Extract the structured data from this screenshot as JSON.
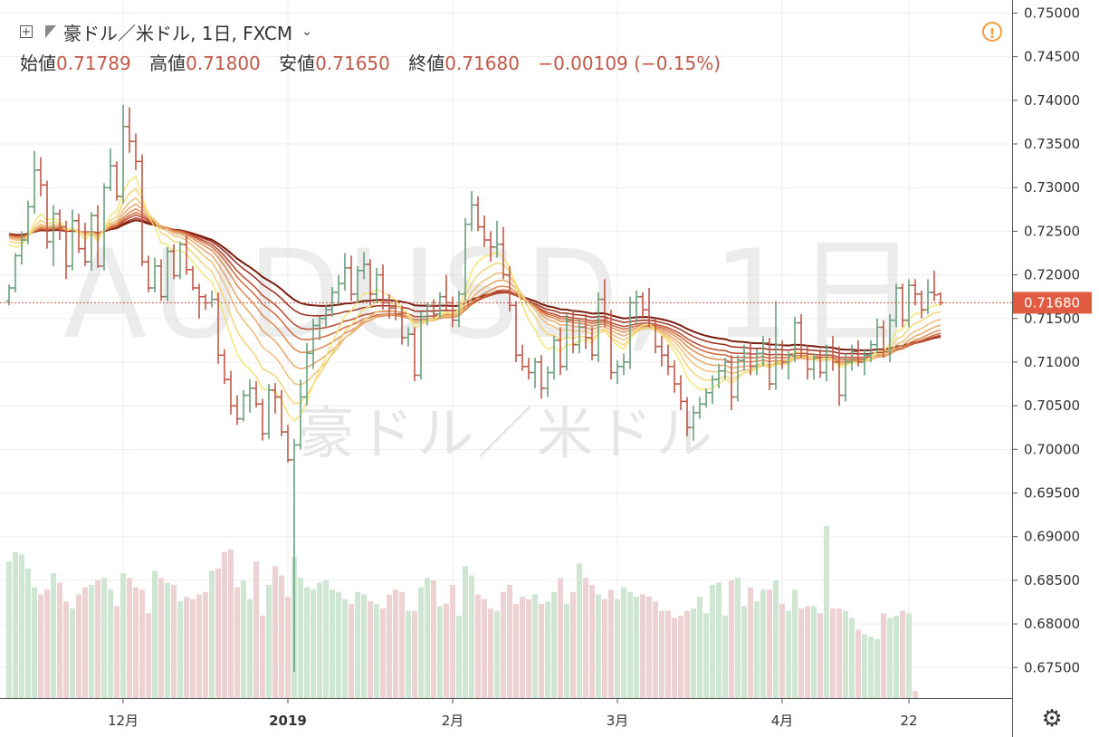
{
  "header": {
    "symbol": "豪ドル／米ドル, 1日, FXCM",
    "ohlc": [
      {
        "label": "始値",
        "value": "0.71789"
      },
      {
        "label": "高値",
        "value": "0.71800"
      },
      {
        "label": "安値",
        "value": "0.71650"
      },
      {
        "label": "終値",
        "value": "0.71680"
      }
    ],
    "change": "−0.00109 (−0.15%)"
  },
  "watermark": {
    "line1": "AUDUSD, 1日",
    "line2": "豪ドル／米ドル"
  },
  "colors": {
    "up": "#6a9f7f",
    "down": "#c0584a",
    "vol_up": "#cfe6d3",
    "vol_down": "#ecd2d2",
    "ribbon": [
      "#7a1c0f",
      "#9b2e1c",
      "#b94a2e",
      "#cf6a3c",
      "#de8a52",
      "#e7a76a",
      "#eec07c",
      "#f2d679",
      "#f6e57a"
    ],
    "accent": "#e05b3f"
  },
  "chart_data": {
    "type": "ohlc",
    "title": "豪ドル／米ドル, 1日, FXCM",
    "xlabel": "",
    "ylabel": "",
    "ylim": [
      0.6715,
      0.7515
    ],
    "y_ticks": [
      "0.75000",
      "0.74500",
      "0.74000",
      "0.73500",
      "0.73000",
      "0.72500",
      "0.72000",
      "0.71500",
      "0.71000",
      "0.70500",
      "0.70000",
      "0.69500",
      "0.69000",
      "0.68500",
      "0.68000",
      "0.67500"
    ],
    "x_ticks": [
      {
        "label": "12月",
        "index": 18
      },
      {
        "label": "2019",
        "index": 44
      },
      {
        "label": "2月",
        "index": 70
      },
      {
        "label": "3月",
        "index": 96
      },
      {
        "label": "4月",
        "index": 122
      },
      {
        "label": "22",
        "index": 142
      }
    ],
    "last_price_label": "0.71680",
    "candles": [
      [
        0.717,
        0.7189,
        0.7165,
        0.7185
      ],
      [
        0.7185,
        0.7225,
        0.718,
        0.7222
      ],
      [
        0.7222,
        0.725,
        0.7212,
        0.724
      ],
      [
        0.724,
        0.7285,
        0.7235,
        0.7278
      ],
      [
        0.7278,
        0.7342,
        0.727,
        0.732
      ],
      [
        0.732,
        0.7335,
        0.729,
        0.7303
      ],
      [
        0.7303,
        0.7308,
        0.723,
        0.7238
      ],
      [
        0.7238,
        0.728,
        0.721,
        0.727
      ],
      [
        0.727,
        0.7275,
        0.724,
        0.7255
      ],
      [
        0.7255,
        0.7262,
        0.7195,
        0.721
      ],
      [
        0.721,
        0.7275,
        0.7205,
        0.7262
      ],
      [
        0.7262,
        0.727,
        0.7225,
        0.723
      ],
      [
        0.723,
        0.726,
        0.721,
        0.7215
      ],
      [
        0.7215,
        0.7272,
        0.7205,
        0.7268
      ],
      [
        0.7268,
        0.728,
        0.7208,
        0.721
      ],
      [
        0.721,
        0.7305,
        0.7205,
        0.73
      ],
      [
        0.73,
        0.7345,
        0.7296,
        0.7325
      ],
      [
        0.7325,
        0.733,
        0.7285,
        0.729
      ],
      [
        0.729,
        0.7395,
        0.7282,
        0.737
      ],
      [
        0.737,
        0.7392,
        0.734,
        0.7353
      ],
      [
        0.7353,
        0.7362,
        0.732,
        0.733
      ],
      [
        0.733,
        0.7338,
        0.721,
        0.7215
      ],
      [
        0.7215,
        0.7222,
        0.718,
        0.7185
      ],
      [
        0.7185,
        0.722,
        0.718,
        0.721
      ],
      [
        0.721,
        0.7218,
        0.717,
        0.7175
      ],
      [
        0.7175,
        0.7232,
        0.717,
        0.7227
      ],
      [
        0.7227,
        0.7235,
        0.7195,
        0.7199
      ],
      [
        0.7199,
        0.7238,
        0.7195,
        0.7235
      ],
      [
        0.7235,
        0.7245,
        0.72,
        0.7206
      ],
      [
        0.7206,
        0.721,
        0.7182,
        0.7185
      ],
      [
        0.7185,
        0.719,
        0.715,
        0.7175
      ],
      [
        0.7175,
        0.7178,
        0.716,
        0.7168
      ],
      [
        0.7168,
        0.7182,
        0.7163,
        0.7172
      ],
      [
        0.7172,
        0.718,
        0.7098,
        0.7108
      ],
      [
        0.7108,
        0.7115,
        0.7075,
        0.708
      ],
      [
        0.708,
        0.709,
        0.704,
        0.705
      ],
      [
        0.705,
        0.7062,
        0.7028,
        0.7035
      ],
      [
        0.7035,
        0.7068,
        0.7032,
        0.7062
      ],
      [
        0.7062,
        0.708,
        0.7042,
        0.707
      ],
      [
        0.707,
        0.7078,
        0.7048,
        0.7052
      ],
      [
        0.7052,
        0.7058,
        0.701,
        0.7018
      ],
      [
        0.7018,
        0.7075,
        0.7012,
        0.7068
      ],
      [
        0.7068,
        0.7076,
        0.7041,
        0.706
      ],
      [
        0.706,
        0.7068,
        0.7015,
        0.702
      ],
      [
        0.702,
        0.7028,
        0.6985,
        0.6988
      ],
      [
        0.6988,
        0.7012,
        0.6745,
        0.7005
      ],
      [
        0.7005,
        0.708,
        0.7,
        0.706
      ],
      [
        0.706,
        0.7122,
        0.705,
        0.711
      ],
      [
        0.711,
        0.715,
        0.7092,
        0.7142
      ],
      [
        0.7142,
        0.7152,
        0.7125,
        0.715
      ],
      [
        0.715,
        0.7165,
        0.714,
        0.716
      ],
      [
        0.716,
        0.7186,
        0.7152,
        0.718
      ],
      [
        0.718,
        0.72,
        0.7166,
        0.719
      ],
      [
        0.719,
        0.7225,
        0.7182,
        0.7208
      ],
      [
        0.7208,
        0.7222,
        0.717,
        0.7178
      ],
      [
        0.7178,
        0.721,
        0.7168,
        0.7205
      ],
      [
        0.7205,
        0.7226,
        0.7195,
        0.7212
      ],
      [
        0.7212,
        0.7218,
        0.7165,
        0.7178
      ],
      [
        0.7178,
        0.7208,
        0.7168,
        0.72
      ],
      [
        0.72,
        0.7212,
        0.716,
        0.7168
      ],
      [
        0.7168,
        0.7178,
        0.715,
        0.7162
      ],
      [
        0.7162,
        0.717,
        0.7148,
        0.7155
      ],
      [
        0.7155,
        0.7165,
        0.712,
        0.7128
      ],
      [
        0.7128,
        0.714,
        0.7118,
        0.7132
      ],
      [
        0.7132,
        0.714,
        0.7078,
        0.7085
      ],
      [
        0.7085,
        0.7158,
        0.708,
        0.7152
      ],
      [
        0.7152,
        0.7168,
        0.7142,
        0.7165
      ],
      [
        0.7165,
        0.7172,
        0.715,
        0.7155
      ],
      [
        0.7155,
        0.718,
        0.715,
        0.7175
      ],
      [
        0.7175,
        0.72,
        0.716,
        0.7168
      ],
      [
        0.7168,
        0.7175,
        0.714,
        0.7148
      ],
      [
        0.7148,
        0.7182,
        0.714,
        0.7178
      ],
      [
        0.7178,
        0.7265,
        0.717,
        0.7258
      ],
      [
        0.7258,
        0.7296,
        0.725,
        0.728
      ],
      [
        0.728,
        0.729,
        0.725,
        0.7255
      ],
      [
        0.7255,
        0.7268,
        0.7232,
        0.724
      ],
      [
        0.724,
        0.725,
        0.7215,
        0.7232
      ],
      [
        0.7232,
        0.7262,
        0.722,
        0.7235
      ],
      [
        0.7235,
        0.7255,
        0.7195,
        0.72
      ],
      [
        0.72,
        0.721,
        0.7158,
        0.7165
      ],
      [
        0.7165,
        0.717,
        0.71,
        0.7108
      ],
      [
        0.7108,
        0.712,
        0.709,
        0.7095
      ],
      [
        0.7095,
        0.7105,
        0.708,
        0.7088
      ],
      [
        0.7088,
        0.7105,
        0.707,
        0.71
      ],
      [
        0.71,
        0.7108,
        0.7058,
        0.707
      ],
      [
        0.707,
        0.7095,
        0.706,
        0.7088
      ],
      [
        0.7088,
        0.713,
        0.708,
        0.7125
      ],
      [
        0.7125,
        0.714,
        0.7085,
        0.7095
      ],
      [
        0.7095,
        0.7155,
        0.709,
        0.7148
      ],
      [
        0.7148,
        0.716,
        0.711,
        0.712
      ],
      [
        0.712,
        0.715,
        0.711,
        0.714
      ],
      [
        0.714,
        0.7155,
        0.7115,
        0.7128
      ],
      [
        0.7128,
        0.714,
        0.7102,
        0.7108
      ],
      [
        0.7108,
        0.718,
        0.71,
        0.7172
      ],
      [
        0.7172,
        0.7195,
        0.714,
        0.715
      ],
      [
        0.715,
        0.716,
        0.708,
        0.7088
      ],
      [
        0.7088,
        0.7102,
        0.7075,
        0.7095
      ],
      [
        0.7095,
        0.711,
        0.7085,
        0.71
      ],
      [
        0.71,
        0.7175,
        0.7092,
        0.7168
      ],
      [
        0.7168,
        0.7182,
        0.7145,
        0.7175
      ],
      [
        0.7175,
        0.718,
        0.715,
        0.716
      ],
      [
        0.716,
        0.7185,
        0.714,
        0.7148
      ],
      [
        0.7148,
        0.715,
        0.711,
        0.7118
      ],
      [
        0.7118,
        0.713,
        0.7095,
        0.7108
      ],
      [
        0.7108,
        0.712,
        0.7085,
        0.7095
      ],
      [
        0.7095,
        0.7102,
        0.7065,
        0.7075
      ],
      [
        0.7075,
        0.7085,
        0.7045,
        0.7055
      ],
      [
        0.7055,
        0.706,
        0.7015,
        0.7025
      ],
      [
        0.7025,
        0.705,
        0.701,
        0.7042
      ],
      [
        0.7042,
        0.706,
        0.7035,
        0.7052
      ],
      [
        0.7052,
        0.707,
        0.7048,
        0.7065
      ],
      [
        0.7065,
        0.7085,
        0.7052,
        0.708
      ],
      [
        0.708,
        0.7098,
        0.707,
        0.709
      ],
      [
        0.709,
        0.7105,
        0.708,
        0.71
      ],
      [
        0.71,
        0.7108,
        0.7045,
        0.706
      ],
      [
        0.706,
        0.7108,
        0.7055,
        0.7102
      ],
      [
        0.7102,
        0.712,
        0.709,
        0.711
      ],
      [
        0.711,
        0.7122,
        0.7085,
        0.7095
      ],
      [
        0.7095,
        0.7115,
        0.7085,
        0.711
      ],
      [
        0.711,
        0.713,
        0.7095,
        0.7122
      ],
      [
        0.7122,
        0.7128,
        0.7068,
        0.7075
      ],
      [
        0.7075,
        0.717,
        0.7068,
        0.712
      ],
      [
        0.712,
        0.7125,
        0.7092,
        0.71
      ],
      [
        0.71,
        0.7112,
        0.708,
        0.7108
      ],
      [
        0.7108,
        0.7152,
        0.71,
        0.7145
      ],
      [
        0.7145,
        0.7155,
        0.7105,
        0.711
      ],
      [
        0.711,
        0.712,
        0.708,
        0.7092
      ],
      [
        0.7092,
        0.711,
        0.708,
        0.7105
      ],
      [
        0.7105,
        0.7115,
        0.7082,
        0.7088
      ],
      [
        0.7088,
        0.712,
        0.7078,
        0.7112
      ],
      [
        0.7112,
        0.713,
        0.709,
        0.71
      ],
      [
        0.71,
        0.7118,
        0.705,
        0.7062
      ],
      [
        0.7062,
        0.711,
        0.7055,
        0.71
      ],
      [
        0.71,
        0.712,
        0.709,
        0.7112
      ],
      [
        0.7112,
        0.7125,
        0.7095,
        0.71
      ],
      [
        0.71,
        0.7115,
        0.7085,
        0.7108
      ],
      [
        0.7108,
        0.7125,
        0.71,
        0.712
      ],
      [
        0.712,
        0.715,
        0.711,
        0.714
      ],
      [
        0.714,
        0.7148,
        0.7105,
        0.7112
      ],
      [
        0.7112,
        0.7155,
        0.71,
        0.7148
      ],
      [
        0.7148,
        0.719,
        0.714,
        0.7185
      ],
      [
        0.7185,
        0.719,
        0.714,
        0.7148
      ],
      [
        0.7148,
        0.7195,
        0.714,
        0.7188
      ],
      [
        0.7188,
        0.7195,
        0.7165,
        0.7178
      ],
      [
        0.7178,
        0.7182,
        0.715,
        0.716
      ],
      [
        0.716,
        0.7195,
        0.7155,
        0.718
      ],
      [
        0.718,
        0.7205,
        0.717,
        0.7177
      ],
      [
        0.7178,
        0.718,
        0.7165,
        0.7168
      ]
    ],
    "volume": [
      58,
      62,
      61,
      55,
      47,
      44,
      46,
      53,
      49,
      41,
      38,
      44,
      47,
      48,
      50,
      51,
      46,
      39,
      53,
      51,
      47,
      46,
      36,
      54,
      51,
      49,
      48,
      41,
      43,
      42,
      44,
      45,
      54,
      55,
      62,
      63,
      47,
      50,
      42,
      58,
      35,
      48,
      56,
      52,
      43,
      60,
      51,
      47,
      46,
      49,
      50,
      46,
      45,
      42,
      40,
      45,
      44,
      41,
      40,
      38,
      44,
      46,
      45,
      37,
      37,
      47,
      51,
      50,
      39,
      40,
      48,
      35,
      56,
      52,
      44,
      42,
      38,
      37,
      45,
      48,
      40,
      43,
      42,
      44,
      40,
      41,
      45,
      51,
      40,
      45,
      57,
      51,
      48,
      44,
      42,
      46,
      42,
      47,
      45,
      43,
      44,
      43,
      41,
      37,
      37,
      34,
      35,
      37,
      38,
      43,
      36,
      48,
      49,
      35,
      50,
      51,
      39,
      47,
      41,
      46,
      46,
      50,
      40,
      37,
      46,
      38,
      39,
      39,
      36,
      73,
      38,
      38,
      37,
      34,
      29,
      27,
      26,
      25,
      36,
      34,
      35,
      37,
      36,
      3
    ]
  }
}
